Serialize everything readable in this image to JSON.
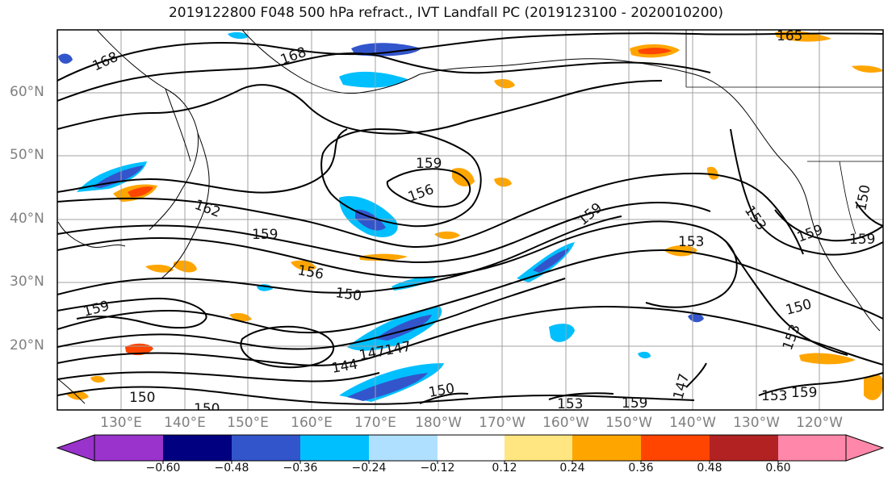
{
  "title": "2019122800 F048 500 hPa refract., IVT Landfall PC (2019123100 - 2020010200)",
  "lat_labels": [
    "60°N",
    "50°N",
    "40°N",
    "30°N",
    "20°N"
  ],
  "lon_labels": [
    "130°E",
    "140°E",
    "150°E",
    "160°E",
    "170°E",
    "180°W",
    "170°W",
    "160°W",
    "150°W",
    "140°W",
    "130°W",
    "120°W"
  ],
  "contour_labels": [
    "168",
    "168",
    "165",
    "159",
    "156",
    "162",
    "159",
    "156",
    "159",
    "153",
    "153",
    "159",
    "159",
    "150",
    "159",
    "150",
    "153",
    "144",
    "147",
    "147",
    "150",
    "150",
    "150",
    "153",
    "159",
    "147",
    "153",
    "159",
    "150"
  ],
  "colorbar": {
    "ticks": [
      "−0.60",
      "−0.48",
      "−0.36",
      "−0.24",
      "−0.12",
      "0.12",
      "0.24",
      "0.36",
      "0.48",
      "0.60"
    ],
    "colors": [
      "#9933cc",
      "#000080",
      "#3355cc",
      "#00bfff",
      "#b0e0ff",
      "#ffffff",
      "#ffe680",
      "#ffa500",
      "#ff4500",
      "#b22222",
      "#ff88aa"
    ]
  }
}
